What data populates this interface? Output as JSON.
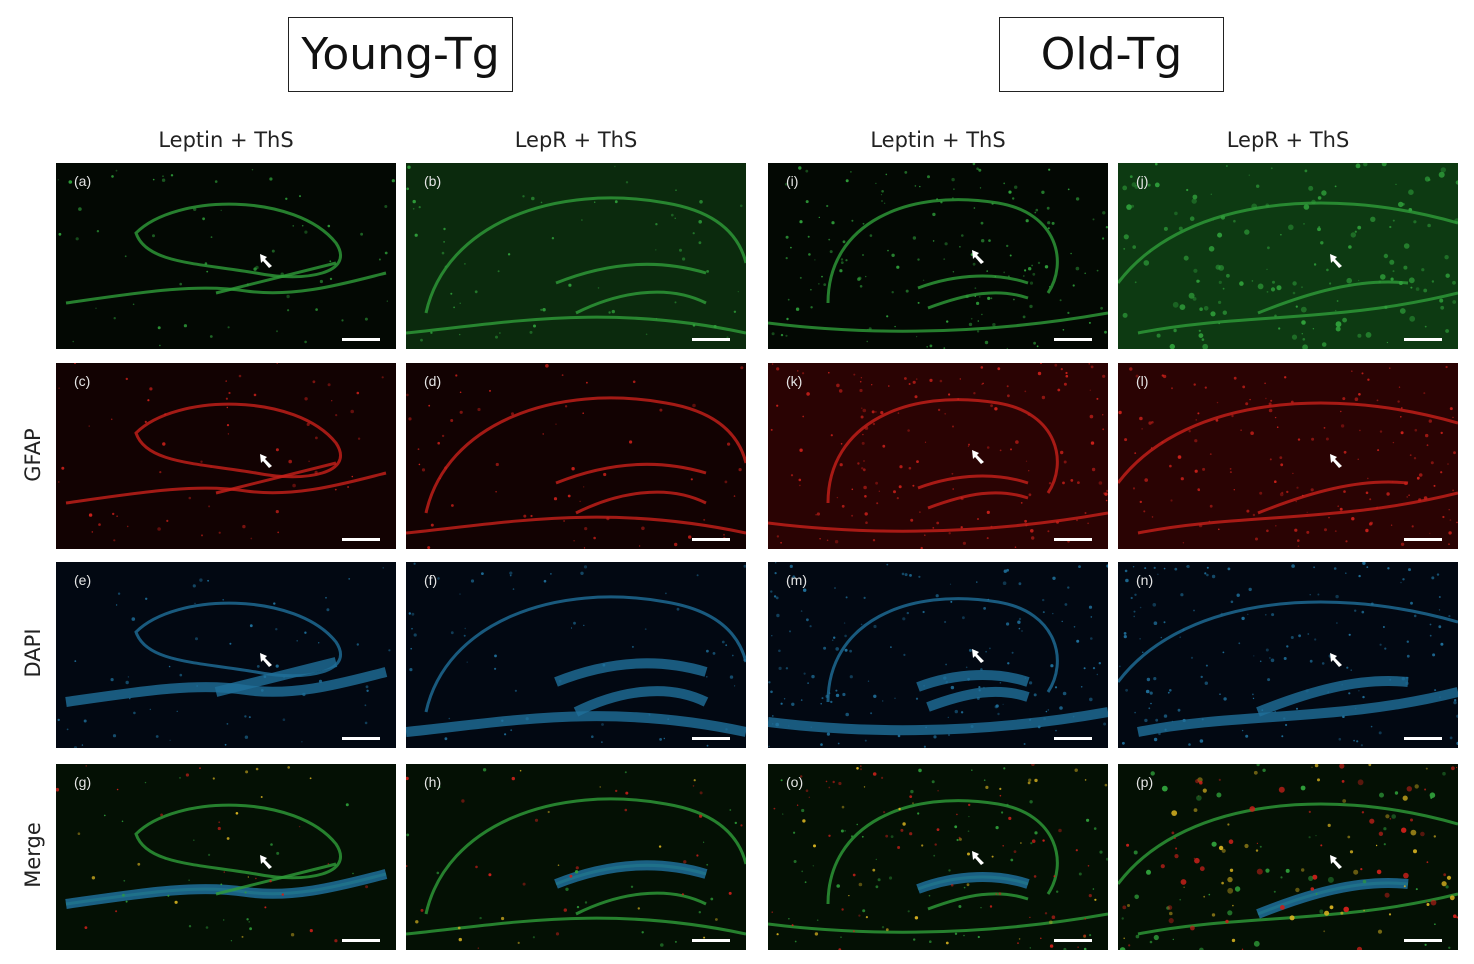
{
  "groups": [
    {
      "title": "Young-Tg"
    },
    {
      "title": "Old-Tg"
    }
  ],
  "column_headers": [
    "Leptin + ThS",
    "LepR + ThS",
    "Leptin + ThS",
    "LepR + ThS"
  ],
  "row_labels": [
    "GFAP",
    "DAPI",
    "Merge"
  ],
  "panels": [
    {
      "label": "(a)",
      "channel": "green",
      "group": "young",
      "col": 0
    },
    {
      "label": "(b)",
      "channel": "green",
      "group": "young",
      "col": 1
    },
    {
      "label": "(c)",
      "channel": "red",
      "group": "young",
      "col": 0
    },
    {
      "label": "(d)",
      "channel": "red",
      "group": "young",
      "col": 1
    },
    {
      "label": "(e)",
      "channel": "blue",
      "group": "young",
      "col": 0
    },
    {
      "label": "(f)",
      "channel": "blue",
      "group": "young",
      "col": 1
    },
    {
      "label": "(g)",
      "channel": "merge",
      "group": "young",
      "col": 0
    },
    {
      "label": "(h)",
      "channel": "merge",
      "group": "young",
      "col": 1
    },
    {
      "label": "(i)",
      "channel": "green",
      "group": "old",
      "col": 2
    },
    {
      "label": "(j)",
      "channel": "green",
      "group": "old",
      "col": 3
    },
    {
      "label": "(k)",
      "channel": "red",
      "group": "old",
      "col": 2
    },
    {
      "label": "(l)",
      "channel": "red",
      "group": "old",
      "col": 3
    },
    {
      "label": "(m)",
      "channel": "blue",
      "group": "old",
      "col": 2
    },
    {
      "label": "(n)",
      "channel": "blue",
      "group": "old",
      "col": 3
    },
    {
      "label": "(o)",
      "channel": "merge",
      "group": "old",
      "col": 2
    },
    {
      "label": "(p)",
      "channel": "merge",
      "group": "old",
      "col": 3
    }
  ],
  "colors": {
    "green": "#2f9e3a",
    "red": "#c8201a",
    "blue": "#1f6f9a",
    "background": "#ffffff"
  }
}
